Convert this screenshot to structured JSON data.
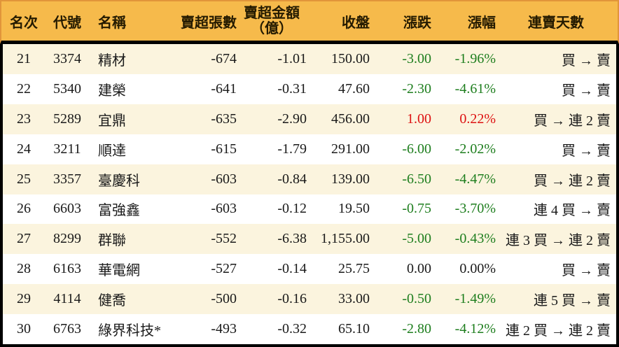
{
  "colors": {
    "header_bg": "#F6BA4B",
    "header_border": "#E1953A",
    "row_alt_bg": "#FBF4DE",
    "up_red": "#DD1111",
    "down_green": "#1E7E1E",
    "text": "#1A1A1A",
    "table_border": "#000000"
  },
  "chart_data": {
    "type": "table",
    "title": "",
    "legend": null,
    "columns": [
      {
        "key": "rank",
        "label": "名次"
      },
      {
        "key": "code",
        "label": "代號"
      },
      {
        "key": "name",
        "label": "名稱"
      },
      {
        "key": "volume",
        "label": "賣超張數"
      },
      {
        "key": "amount",
        "label": "賣超金額",
        "label_line2": "（億）"
      },
      {
        "key": "close",
        "label": "收盤"
      },
      {
        "key": "change",
        "label": "漲跌"
      },
      {
        "key": "change_pct",
        "label": "漲幅"
      },
      {
        "key": "streak",
        "label": "連賣天數"
      }
    ],
    "rows": [
      {
        "rank": "21",
        "code": "3374",
        "name": "精材",
        "volume": "-674",
        "amount": "-1.01",
        "close": "150.00",
        "change": "-3.00",
        "change_pct": "-1.96%",
        "streak": "買 → 賣",
        "trend": "down"
      },
      {
        "rank": "22",
        "code": "5340",
        "name": "建榮",
        "volume": "-641",
        "amount": "-0.31",
        "close": "47.60",
        "change": "-2.30",
        "change_pct": "-4.61%",
        "streak": "買 → 賣",
        "trend": "down"
      },
      {
        "rank": "23",
        "code": "5289",
        "name": "宜鼎",
        "volume": "-635",
        "amount": "-2.90",
        "close": "456.00",
        "change": "1.00",
        "change_pct": "0.22%",
        "streak": "買 → 連 2 賣",
        "trend": "up"
      },
      {
        "rank": "24",
        "code": "3211",
        "name": "順達",
        "volume": "-615",
        "amount": "-1.79",
        "close": "291.00",
        "change": "-6.00",
        "change_pct": "-2.02%",
        "streak": "買 → 賣",
        "trend": "down"
      },
      {
        "rank": "25",
        "code": "3357",
        "name": "臺慶科",
        "volume": "-603",
        "amount": "-0.84",
        "close": "139.00",
        "change": "-6.50",
        "change_pct": "-4.47%",
        "streak": "買 → 連 2 賣",
        "trend": "down"
      },
      {
        "rank": "26",
        "code": "6603",
        "name": "富強鑫",
        "volume": "-603",
        "amount": "-0.12",
        "close": "19.50",
        "change": "-0.75",
        "change_pct": "-3.70%",
        "streak": "連 4 買 → 賣",
        "trend": "down"
      },
      {
        "rank": "27",
        "code": "8299",
        "name": "群聯",
        "volume": "-552",
        "amount": "-6.38",
        "close": "1,155.00",
        "change": "-5.00",
        "change_pct": "-0.43%",
        "streak": "連 3 買 → 連 2 賣",
        "trend": "down"
      },
      {
        "rank": "28",
        "code": "6163",
        "name": "華電網",
        "volume": "-527",
        "amount": "-0.14",
        "close": "25.75",
        "change": "0.00",
        "change_pct": "0.00%",
        "streak": "買 → 賣",
        "trend": "flat"
      },
      {
        "rank": "29",
        "code": "4114",
        "name": "健喬",
        "volume": "-500",
        "amount": "-0.16",
        "close": "33.00",
        "change": "-0.50",
        "change_pct": "-1.49%",
        "streak": "連 5 買 → 賣",
        "trend": "down"
      },
      {
        "rank": "30",
        "code": "6763",
        "name": "綠界科技*",
        "volume": "-493",
        "amount": "-0.32",
        "close": "65.10",
        "change": "-2.80",
        "change_pct": "-4.12%",
        "streak": "連 2 買 → 連 2 賣",
        "trend": "down"
      }
    ]
  }
}
